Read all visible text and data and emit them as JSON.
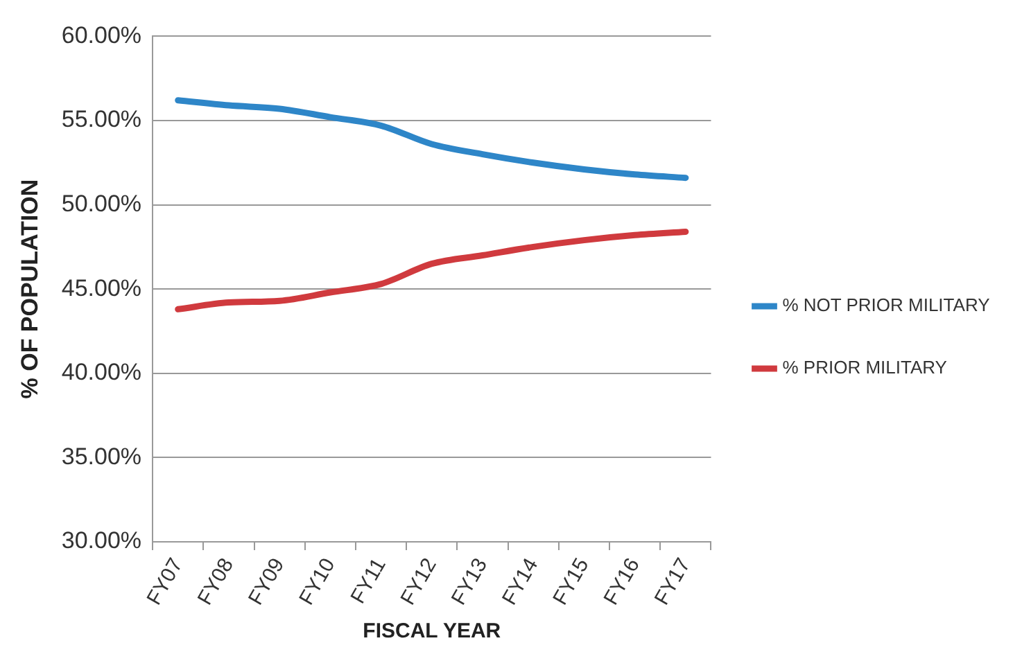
{
  "chart_data": {
    "type": "line",
    "xlabel": "FISCAL YEAR",
    "ylabel": "% OF POPULATION",
    "categories": [
      "FY07",
      "FY08",
      "FY09",
      "FY10",
      "FY11",
      "FY12",
      "FY13",
      "FY14",
      "FY15",
      "FY16",
      "FY17"
    ],
    "series": [
      {
        "name": "% NOT PRIOR MILITARY",
        "color": "#2e86c8",
        "values": [
          56.2,
          55.9,
          55.7,
          55.2,
          54.7,
          53.6,
          53.0,
          52.5,
          52.1,
          51.8,
          51.6
        ]
      },
      {
        "name": "% PRIOR MILITARY",
        "color": "#d03a3e",
        "values": [
          43.8,
          44.2,
          44.3,
          44.8,
          45.3,
          46.5,
          47.0,
          47.5,
          47.9,
          48.2,
          48.4
        ]
      }
    ],
    "ylim": [
      30,
      60
    ],
    "yticks": [
      {
        "value": 30,
        "label": "30.00%"
      },
      {
        "value": 35,
        "label": "35.00%"
      },
      {
        "value": 40,
        "label": "40.00%"
      },
      {
        "value": 45,
        "label": "45.00%"
      },
      {
        "value": 50,
        "label": "50.00%"
      },
      {
        "value": 55,
        "label": "55.00%"
      },
      {
        "value": 60,
        "label": "60.00%"
      }
    ],
    "grid": "y",
    "legend": "right",
    "marker": "none",
    "line_style": "solid"
  }
}
